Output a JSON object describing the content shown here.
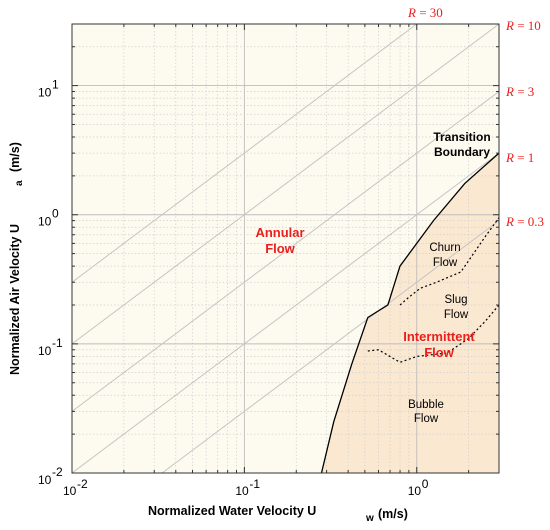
{
  "chart_data": {
    "type": "line",
    "xlabel": "Normalized Water Velocity U",
    "xlabel_sub": "w",
    "xlabel_unit": "(m/s)",
    "ylabel": "Normalized Air Velocity U",
    "ylabel_sub": "a",
    "ylabel_unit": "(m/s)",
    "x_scale": "log",
    "y_scale": "log",
    "xlim": [
      0.01,
      3
    ],
    "ylim": [
      0.01,
      30
    ],
    "grid": true,
    "x_ticks": [
      {
        "value": 0.01,
        "base": "10",
        "exp": "-2"
      },
      {
        "value": 0.1,
        "base": "10",
        "exp": "-1"
      },
      {
        "value": 1,
        "base": "10",
        "exp": "0"
      }
    ],
    "y_ticks": [
      {
        "value": 0.01,
        "base": "10",
        "exp": "-2"
      },
      {
        "value": 0.1,
        "base": "10",
        "exp": "-1"
      },
      {
        "value": 1,
        "base": "10",
        "exp": "0"
      },
      {
        "value": 10,
        "base": "10",
        "exp": "1"
      }
    ],
    "ratio_lines": [
      {
        "ratio": 30,
        "label_R": "R",
        "label_eq": "= 30"
      },
      {
        "ratio": 10,
        "label_R": "R",
        "label_eq": "= 10"
      },
      {
        "ratio": 3,
        "label_R": "R",
        "label_eq": "= 3"
      },
      {
        "ratio": 1,
        "label_R": "R",
        "label_eq": "= 1"
      },
      {
        "ratio": 0.3,
        "label_R": "R",
        "label_eq": "= 0.3"
      }
    ],
    "transition_boundary": {
      "label_line1": "Transition",
      "label_line2": "Boundary",
      "x": [
        0.28,
        0.33,
        0.42,
        0.52,
        0.68,
        0.8,
        1.25,
        1.9,
        3.0
      ],
      "y": [
        0.01,
        0.025,
        0.07,
        0.16,
        0.2,
        0.4,
        0.9,
        1.75,
        3.0
      ]
    },
    "churn_slug_boundary": {
      "x": [
        0.8,
        0.9,
        1.05,
        1.3,
        1.8,
        2.5,
        3.0
      ],
      "y": [
        0.2,
        0.23,
        0.27,
        0.3,
        0.36,
        0.68,
        0.95
      ]
    },
    "slug_bubble_boundary": {
      "x": [
        0.52,
        0.6,
        0.8,
        1.0,
        1.5,
        2.0,
        2.5,
        3.0
      ],
      "y": [
        0.088,
        0.09,
        0.072,
        0.08,
        0.085,
        0.11,
        0.15,
        0.2
      ]
    },
    "regions": {
      "annular_line1": "Annular",
      "annular_line2": "Flow",
      "churn_line1": "Churn",
      "churn_line2": "Flow",
      "slug_line1": "Slug",
      "slug_line2": "Flow",
      "intermittent_line1": "Intermittent",
      "intermittent_line2": "Flow",
      "bubble_line1": "Bubble",
      "bubble_line2": "Flow"
    },
    "colors": {
      "background": "#fdfbf0",
      "intermittent_fill": "#fbe8d1",
      "grid": "#cfcfcf",
      "ratio_line": "#c4c4c4",
      "boundary": "#000000",
      "red_text": "#e8211f"
    }
  }
}
